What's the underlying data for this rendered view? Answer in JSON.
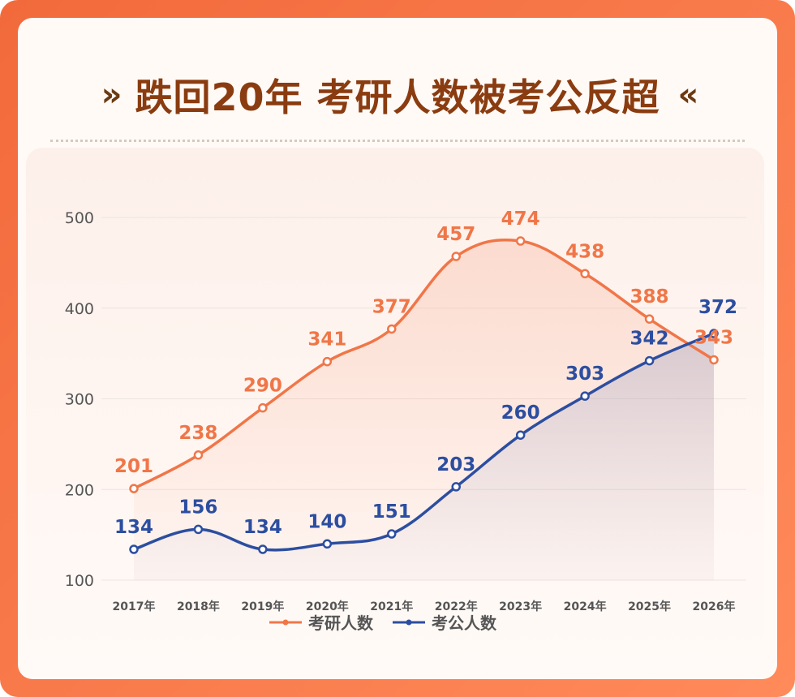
{
  "colors": {
    "frame": "#f26a3c",
    "title": "#8a3c10",
    "series1": "#f07648",
    "series2": "#2c4ea0"
  },
  "title": "跌回20年 考研人数被考公反超",
  "title_deco_left": "»",
  "title_deco_right": "«",
  "chart_data": {
    "type": "line",
    "title": "跌回20年 考研人数被考公反超",
    "xlabel": "",
    "ylabel": "",
    "ylim": [
      100,
      500
    ],
    "yticks": [
      100,
      200,
      300,
      400,
      500
    ],
    "grid": true,
    "legend": "bottom",
    "categories": [
      "2017年",
      "2018年",
      "2019年",
      "2020年",
      "2021年",
      "2022年",
      "2023年",
      "2024年",
      "2025年",
      "2026年"
    ],
    "series": [
      {
        "name": "考研人数",
        "values": [
          201,
          238,
          290,
          341,
          377,
          457,
          474,
          438,
          388,
          343
        ]
      },
      {
        "name": "考公人数",
        "values": [
          134,
          156,
          134,
          140,
          151,
          203,
          260,
          303,
          342,
          372
        ]
      }
    ]
  }
}
